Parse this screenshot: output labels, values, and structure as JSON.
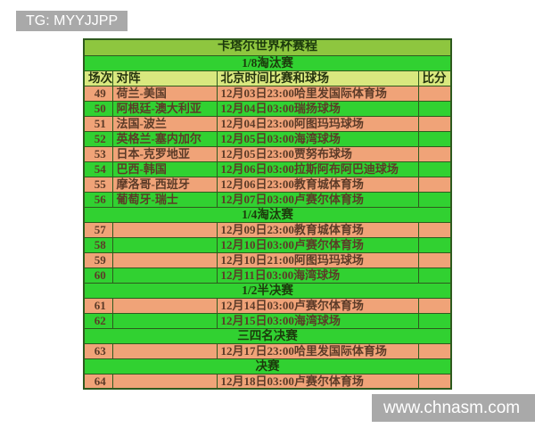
{
  "badges": {
    "tg": "TG: MYYJJPP",
    "site": "www.chnasm.com"
  },
  "table": {
    "title": "卡塔尔世界杯赛程",
    "columns": [
      "场次",
      "对阵",
      "北京时间比赛和球场",
      "比分"
    ],
    "sections": [
      {
        "label": "1/8淘汰赛",
        "rows": [
          {
            "no": "49",
            "match": "荷兰-美国",
            "time": "12月03日23:00哈里发国际体育场",
            "score": ""
          },
          {
            "no": "50",
            "match": "阿根廷-澳大利亚",
            "time": "12月04日03:00瑞扬球场",
            "score": ""
          },
          {
            "no": "51",
            "match": "法国-波兰",
            "time": "12月04日23:00阿图玛玛球场",
            "score": ""
          },
          {
            "no": "52",
            "match": "英格兰-塞内加尔",
            "time": "12月05日03:00海湾球场",
            "score": ""
          },
          {
            "no": "53",
            "match": "日本-克罗地亚",
            "time": "12月05日23:00贾努布球场",
            "score": ""
          },
          {
            "no": "54",
            "match": "巴西-韩国",
            "time": "12月06日03:00拉斯阿布阿巴迪球场",
            "score": ""
          },
          {
            "no": "55",
            "match": "摩洛哥-西班牙",
            "time": "12月06日23:00教育城体育场",
            "score": ""
          },
          {
            "no": "56",
            "match": "葡萄牙-瑞士",
            "time": "12月07日03:00卢赛尔体育场",
            "score": ""
          }
        ]
      },
      {
        "label": "1/4淘汰赛",
        "rows": [
          {
            "no": "57",
            "match": "",
            "time": "12月09日23:00教育城体育场",
            "score": ""
          },
          {
            "no": "58",
            "match": "",
            "time": "12月10日03:00卢赛尔体育场",
            "score": ""
          },
          {
            "no": "59",
            "match": "",
            "time": "12月10日21:00阿图玛玛球场",
            "score": ""
          },
          {
            "no": "60",
            "match": "",
            "time": "12月11日03:00海湾球场",
            "score": ""
          }
        ]
      },
      {
        "label": "1/2半决赛",
        "rows": [
          {
            "no": "61",
            "match": "",
            "time": "12月14日03:00卢赛尔体育场",
            "score": ""
          },
          {
            "no": "62",
            "match": "",
            "time": "12月15日03:00海湾球场",
            "score": ""
          }
        ]
      },
      {
        "label": "三四名决赛",
        "rows": [
          {
            "no": "63",
            "match": "",
            "time": "12月17日23:00哈里发国际体育场",
            "score": ""
          }
        ]
      },
      {
        "label": "决赛",
        "rows": [
          {
            "no": "64",
            "match": "",
            "time": "12月18日03:00卢赛尔体育场",
            "score": ""
          }
        ]
      }
    ]
  },
  "colors": {
    "row_salmon": "#f0a378",
    "row_green": "#31d131",
    "title_bg": "#8ec63f",
    "header_bg": "#d9e87f",
    "banner_bg": "#a9a9a9",
    "border": "#2e5a1e",
    "data_text": "#5c3b28",
    "heading_text": "#1c3a0c"
  }
}
